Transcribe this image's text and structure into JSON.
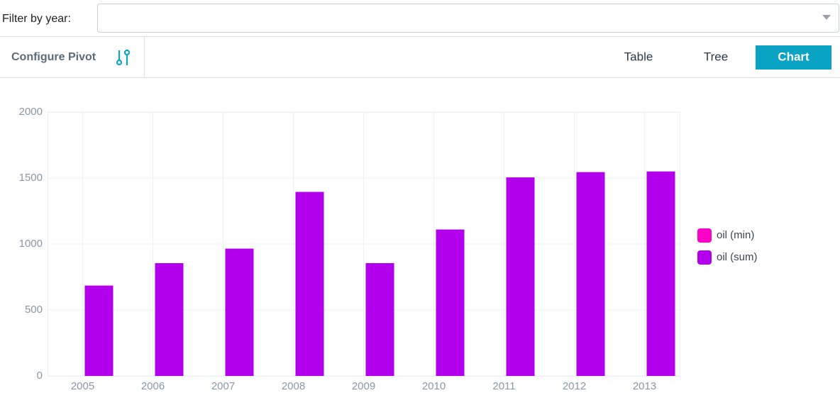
{
  "filter": {
    "label": "Filter by year:"
  },
  "toolbar": {
    "configure": "Configure Pivot",
    "tabs": [
      "Table",
      "Tree",
      "Chart"
    ]
  },
  "chart_data": {
    "type": "bar",
    "categories": [
      "2005",
      "2006",
      "2007",
      "2008",
      "2009",
      "2010",
      "2011",
      "2012",
      "2013"
    ],
    "series": [
      {
        "name": "oil (min)",
        "color": "#ff00c8",
        "values": [
          0,
          0,
          0,
          0,
          0,
          0,
          0,
          0,
          0
        ]
      },
      {
        "name": "oil (sum)",
        "color": "#b200ec",
        "values": [
          685,
          855,
          965,
          1395,
          855,
          1110,
          1505,
          1545,
          1550
        ]
      }
    ],
    "ylim": [
      0,
      2000
    ],
    "yticks": [
      0,
      500,
      1000,
      1500,
      2000
    ],
    "grid": true,
    "legend": "right"
  }
}
